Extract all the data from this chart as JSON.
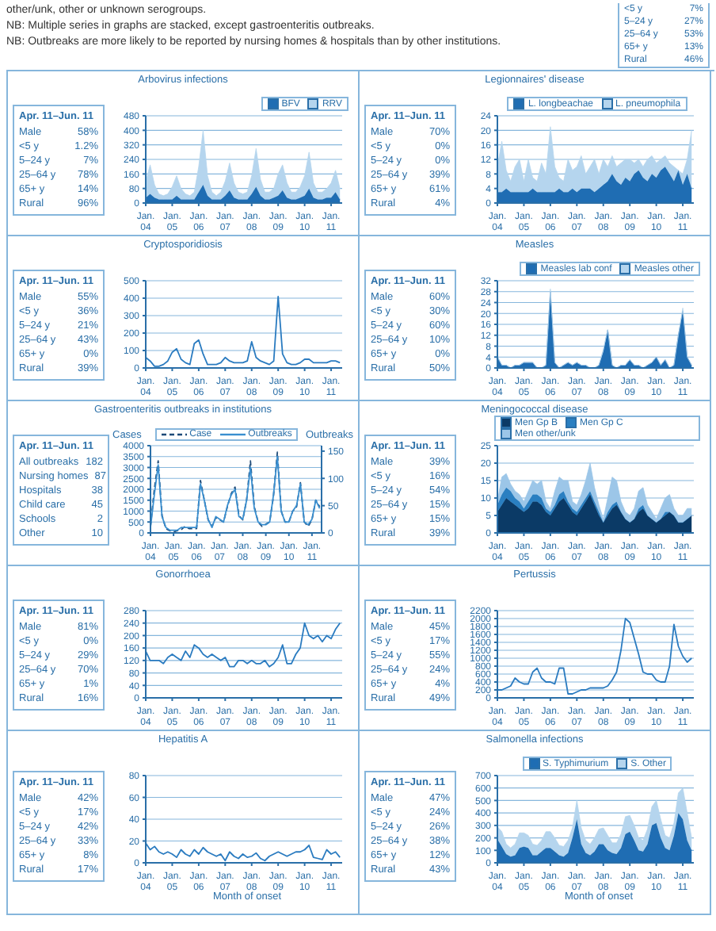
{
  "chart_data": [
    {
      "type": "other",
      "annotations": [
        "other/unk, other or unknown serogroups.",
        "NB: Multiple series in graphs are stacked, except gastroenteritis outbreaks.",
        "NB: Outbreaks are more likely to be reported by nursing homes & hospitals than by other institutions.",
        "<5 y 7%",
        "5–24 y 27%",
        "25–64 y 53%",
        "65+ y 13%",
        "Rural 46%"
      ]
    },
    {
      "type": "area",
      "title": "Arbovirus infections",
      "stacked": true,
      "legend": "top right",
      "grid": "y",
      "xlim": [
        "2004-01",
        "2011-06"
      ],
      "ylim": [
        0,
        480
      ],
      "yticks": [
        0,
        80,
        160,
        240,
        320,
        400,
        480
      ],
      "xticks": [
        {
          "value": "2004-01",
          "label": "Jan. 04"
        },
        {
          "value": "2005-01",
          "label": "Jan. 05"
        },
        {
          "value": "2006-01",
          "label": "Jan. 06"
        },
        {
          "value": "2007-01",
          "label": "Jan. 07"
        },
        {
          "value": "2008-01",
          "label": "Jan. 08"
        },
        {
          "value": "2009-01",
          "label": "Jan. 09"
        },
        {
          "value": "2010-01",
          "label": "Jan. 10"
        },
        {
          "value": "2011-01",
          "label": "Jan. 11"
        }
      ],
      "x": [
        "2004-01",
        "2004-03",
        "2004-05",
        "2004-07",
        "2004-09",
        "2004-11",
        "2005-01",
        "2005-03",
        "2005-05",
        "2005-07",
        "2005-09",
        "2005-11",
        "2006-01",
        "2006-03",
        "2006-05",
        "2006-07",
        "2006-09",
        "2006-11",
        "2007-01",
        "2007-03",
        "2007-05",
        "2007-07",
        "2007-09",
        "2007-11",
        "2008-01",
        "2008-03",
        "2008-05",
        "2008-07",
        "2008-09",
        "2008-11",
        "2009-01",
        "2009-03",
        "2009-05",
        "2009-07",
        "2009-09",
        "2009-11",
        "2010-01",
        "2010-03",
        "2010-05",
        "2010-07",
        "2010-09",
        "2010-11",
        "2011-01",
        "2011-03",
        "2011-05"
      ],
      "series": [
        {
          "name": "BFV",
          "color": "#1f6db3",
          "values": [
            30,
            50,
            30,
            20,
            20,
            20,
            20,
            40,
            20,
            20,
            20,
            20,
            60,
            100,
            40,
            20,
            20,
            20,
            40,
            70,
            30,
            20,
            20,
            20,
            50,
            90,
            40,
            20,
            20,
            30,
            40,
            70,
            30,
            20,
            20,
            30,
            40,
            80,
            30,
            20,
            20,
            30,
            30,
            60,
            20
          ]
        },
        {
          "name": "RRV",
          "color": "#b5d5ee",
          "values": [
            90,
            160,
            70,
            30,
            20,
            30,
            70,
            110,
            60,
            30,
            20,
            40,
            140,
            300,
            110,
            40,
            20,
            40,
            80,
            150,
            80,
            40,
            30,
            40,
            100,
            210,
            90,
            40,
            40,
            50,
            120,
            140,
            80,
            40,
            40,
            60,
            110,
            200,
            80,
            40,
            40,
            50,
            80,
            120,
            60
          ]
        }
      ],
      "annotations": [
        "Apr. 11–Jun. 11",
        "Male 58%",
        "<5 y 1.2%",
        "5–24 y 7%",
        "25–64 y 78%",
        "65+ y 14%",
        "Rural 96%"
      ]
    },
    {
      "type": "area",
      "title": "Legionnaires' disease",
      "stacked": true,
      "legend": "top",
      "grid": "y",
      "xlim": [
        "2004-01",
        "2011-06"
      ],
      "ylim": [
        0,
        24
      ],
      "yticks": [
        0,
        4,
        8,
        12,
        16,
        20,
        24
      ],
      "xticks": [
        {
          "value": "2004-01",
          "label": "Jan. 04"
        },
        {
          "value": "2005-01",
          "label": "Jan. 05"
        },
        {
          "value": "2006-01",
          "label": "Jan. 06"
        },
        {
          "value": "2007-01",
          "label": "Jan. 07"
        },
        {
          "value": "2008-01",
          "label": "Jan. 08"
        },
        {
          "value": "2009-01",
          "label": "Jan. 09"
        },
        {
          "value": "2010-01",
          "label": "Jan. 10"
        },
        {
          "value": "2011-01",
          "label": "Jan. 11"
        }
      ],
      "x": [
        "2004-01",
        "2004-03",
        "2004-05",
        "2004-07",
        "2004-09",
        "2004-11",
        "2005-01",
        "2005-03",
        "2005-05",
        "2005-07",
        "2005-09",
        "2005-11",
        "2006-01",
        "2006-03",
        "2006-05",
        "2006-07",
        "2006-09",
        "2006-11",
        "2007-01",
        "2007-03",
        "2007-05",
        "2007-07",
        "2007-09",
        "2007-11",
        "2008-01",
        "2008-03",
        "2008-05",
        "2008-07",
        "2008-09",
        "2008-11",
        "2009-01",
        "2009-03",
        "2009-05",
        "2009-07",
        "2009-09",
        "2009-11",
        "2010-01",
        "2010-03",
        "2010-05",
        "2010-07",
        "2010-09",
        "2010-11",
        "2011-01",
        "2011-03",
        "2011-05"
      ],
      "series": [
        {
          "name": "L. longbeachae",
          "color": "#1f6db3",
          "values": [
            3,
            3,
            4,
            3,
            3,
            3,
            3,
            3,
            4,
            3,
            3,
            3,
            3,
            3,
            4,
            3,
            3,
            4,
            3,
            4,
            4,
            4,
            3,
            4,
            5,
            6,
            8,
            6,
            5,
            7,
            6,
            8,
            9,
            7,
            6,
            8,
            7,
            9,
            10,
            8,
            6,
            9,
            5,
            8,
            4
          ]
        },
        {
          "name": "L. pneumophila",
          "color": "#b5d5ee",
          "values": [
            7,
            14,
            5,
            3,
            7,
            9,
            3,
            9,
            3,
            3,
            8,
            5,
            18,
            7,
            3,
            3,
            9,
            5,
            7,
            9,
            4,
            6,
            9,
            4,
            7,
            4,
            5,
            4,
            6,
            5,
            6,
            3,
            3,
            3,
            6,
            5,
            4,
            3,
            3,
            3,
            4,
            0,
            3,
            4,
            16
          ]
        }
      ],
      "annotations": [
        "Apr. 11–Jun. 11",
        "Male 70%",
        "<5 y 0%",
        "5–24 y 0%",
        "25–64 y 39%",
        "65+ y 61%",
        "Rural 4%"
      ]
    },
    {
      "type": "line",
      "title": "Cryptosporidiosis",
      "grid": "y",
      "xlim": [
        "2004-01",
        "2011-06"
      ],
      "ylim": [
        0,
        500
      ],
      "yticks": [
        0,
        100,
        200,
        300,
        400,
        500
      ],
      "xticks": [
        {
          "value": "2004-01",
          "label": "Jan. 04"
        },
        {
          "value": "2005-01",
          "label": "Jan. 05"
        },
        {
          "value": "2006-01",
          "label": "Jan. 06"
        },
        {
          "value": "2007-01",
          "label": "Jan. 07"
        },
        {
          "value": "2008-01",
          "label": "Jan. 08"
        },
        {
          "value": "2009-01",
          "label": "Jan. 09"
        },
        {
          "value": "2010-01",
          "label": "Jan. 10"
        },
        {
          "value": "2011-01",
          "label": "Jan. 11"
        }
      ],
      "x": [
        "2004-01",
        "2004-03",
        "2004-05",
        "2004-07",
        "2004-09",
        "2004-11",
        "2005-01",
        "2005-03",
        "2005-05",
        "2005-07",
        "2005-09",
        "2005-11",
        "2006-01",
        "2006-03",
        "2006-05",
        "2006-07",
        "2006-09",
        "2006-11",
        "2007-01",
        "2007-03",
        "2007-05",
        "2007-07",
        "2007-09",
        "2007-11",
        "2008-01",
        "2008-03",
        "2008-05",
        "2008-07",
        "2008-09",
        "2008-11",
        "2009-01",
        "2009-03",
        "2009-05",
        "2009-07",
        "2009-09",
        "2009-11",
        "2010-01",
        "2010-03",
        "2010-05",
        "2010-07",
        "2010-09",
        "2010-11",
        "2011-01",
        "2011-03",
        "2011-05"
      ],
      "series": [
        {
          "color": "#2a7bc0",
          "values": [
            60,
            40,
            10,
            10,
            20,
            40,
            90,
            110,
            50,
            30,
            20,
            140,
            160,
            80,
            20,
            20,
            20,
            30,
            60,
            40,
            30,
            30,
            30,
            40,
            150,
            60,
            40,
            30,
            20,
            40,
            410,
            80,
            30,
            20,
            20,
            30,
            50,
            50,
            30,
            30,
            30,
            30,
            40,
            40,
            30
          ]
        }
      ],
      "annotations": [
        "Apr. 11–Jun. 11",
        "Male 55%",
        "<5 y 36%",
        "5–24 y 21%",
        "25–64 y 43%",
        "65+ y 0%",
        "Rural 39%"
      ]
    },
    {
      "type": "area",
      "title": "Measles",
      "stacked": true,
      "legend": "top right",
      "grid": "y",
      "xlim": [
        "2004-01",
        "2011-06"
      ],
      "ylim": [
        0,
        32
      ],
      "yticks": [
        0,
        4,
        8,
        12,
        16,
        20,
        24,
        28,
        32
      ],
      "xticks": [
        {
          "value": "2004-01",
          "label": "Jan. 04"
        },
        {
          "value": "2005-01",
          "label": "Jan. 05"
        },
        {
          "value": "2006-01",
          "label": "Jan. 06"
        },
        {
          "value": "2007-01",
          "label": "Jan. 07"
        },
        {
          "value": "2008-01",
          "label": "Jan. 08"
        },
        {
          "value": "2009-01",
          "label": "Jan. 09"
        },
        {
          "value": "2010-01",
          "label": "Jan. 10"
        },
        {
          "value": "2011-01",
          "label": "Jan. 11"
        }
      ],
      "x": [
        "2004-01",
        "2004-03",
        "2004-05",
        "2004-07",
        "2004-09",
        "2004-11",
        "2005-01",
        "2005-03",
        "2005-05",
        "2005-07",
        "2005-09",
        "2005-11",
        "2006-01",
        "2006-03",
        "2006-05",
        "2006-07",
        "2006-09",
        "2006-11",
        "2007-01",
        "2007-03",
        "2007-05",
        "2007-07",
        "2007-09",
        "2007-11",
        "2008-01",
        "2008-03",
        "2008-05",
        "2008-07",
        "2008-09",
        "2008-11",
        "2009-01",
        "2009-03",
        "2009-05",
        "2009-07",
        "2009-09",
        "2009-11",
        "2010-01",
        "2010-03",
        "2010-05",
        "2010-07",
        "2010-09",
        "2010-11",
        "2011-01",
        "2011-03",
        "2011-05"
      ],
      "series": [
        {
          "name": "Measles lab conf",
          "color": "#1f6db3",
          "values": [
            4,
            1,
            1,
            0,
            1,
            1,
            2,
            2,
            2,
            0,
            0,
            1,
            28,
            2,
            0,
            1,
            2,
            1,
            2,
            1,
            1,
            0,
            0,
            1,
            6,
            14,
            1,
            0,
            1,
            1,
            3,
            1,
            1,
            0,
            1,
            2,
            4,
            1,
            3,
            0,
            1,
            12,
            21,
            4,
            1
          ]
        },
        {
          "name": "Measles other",
          "color": "#b5d5ee",
          "values": [
            0,
            0,
            0,
            0,
            0,
            0,
            0,
            0,
            0,
            0,
            0,
            0,
            1,
            0,
            0,
            0,
            0,
            0,
            0,
            0,
            0,
            0,
            0,
            0,
            1,
            0,
            0,
            0,
            0,
            0,
            0,
            0,
            0,
            0,
            0,
            0,
            0,
            0,
            0,
            0,
            0,
            0,
            1,
            0,
            0
          ]
        }
      ],
      "annotations": [
        "Apr. 11–Jun. 11",
        "Male 60%",
        "<5 y 30%",
        "5–24 y 60%",
        "25–64 y 10%",
        "65+ y 0%",
        "Rural 50%"
      ]
    },
    {
      "type": "line",
      "title": "Gastroenteritis outbreaks in institutions",
      "legend": "top",
      "grid": "y",
      "ylabel": "Cases",
      "y2label": "Outbreaks",
      "xlim": [
        "2004-01",
        "2011-06"
      ],
      "ylim": [
        0,
        4000
      ],
      "yticks": [
        0,
        500,
        1000,
        1500,
        2000,
        2500,
        3000,
        3500,
        4000
      ],
      "y2lim": [
        0,
        160
      ],
      "y2ticks": [
        0,
        50,
        100,
        150
      ],
      "xticks": [
        {
          "value": "2004-01",
          "label": "Jan. 04"
        },
        {
          "value": "2005-01",
          "label": "Jan. 05"
        },
        {
          "value": "2006-01",
          "label": "Jan. 06"
        },
        {
          "value": "2007-01",
          "label": "Jan. 07"
        },
        {
          "value": "2008-01",
          "label": "Jan. 08"
        },
        {
          "value": "2009-01",
          "label": "Jan. 09"
        },
        {
          "value": "2010-01",
          "label": "Jan. 10"
        },
        {
          "value": "2011-01",
          "label": "Jan. 11"
        }
      ],
      "x": [
        "2004-01",
        "2004-03",
        "2004-05",
        "2004-07",
        "2004-09",
        "2004-11",
        "2005-01",
        "2005-03",
        "2005-05",
        "2005-07",
        "2005-09",
        "2005-11",
        "2006-01",
        "2006-03",
        "2006-05",
        "2006-07",
        "2006-09",
        "2006-11",
        "2007-01",
        "2007-03",
        "2007-05",
        "2007-07",
        "2007-09",
        "2007-11",
        "2008-01",
        "2008-03",
        "2008-05",
        "2008-07",
        "2008-09",
        "2008-11",
        "2009-01",
        "2009-03",
        "2009-05",
        "2009-07",
        "2009-09",
        "2009-11",
        "2010-01",
        "2010-03",
        "2010-05",
        "2010-07",
        "2010-09",
        "2010-11",
        "2011-01",
        "2011-03",
        "2011-05"
      ],
      "series": [
        {
          "name": "Case",
          "color": "#1d4a78",
          "line_style": "dashed",
          "values": [
            300,
            2000,
            3300,
            800,
            200,
            100,
            50,
            100,
            150,
            300,
            200,
            200,
            200,
            2400,
            1500,
            600,
            300,
            700,
            600,
            500,
            1200,
            1800,
            2100,
            800,
            600,
            1500,
            3300,
            1200,
            500,
            300,
            400,
            500,
            1700,
            3700,
            1000,
            500,
            500,
            1000,
            1200,
            2300,
            500,
            300,
            600,
            1500,
            1200
          ]
        },
        {
          "name": "Outbreaks",
          "color": "#3a8fd0",
          "axis": "y2",
          "values": [
            10,
            70,
            125,
            30,
            10,
            5,
            5,
            5,
            10,
            10,
            10,
            10,
            10,
            90,
            60,
            25,
            10,
            30,
            25,
            20,
            50,
            70,
            80,
            30,
            25,
            60,
            120,
            45,
            20,
            15,
            15,
            20,
            70,
            140,
            40,
            20,
            20,
            40,
            50,
            90,
            20,
            15,
            25,
            60,
            45
          ]
        }
      ],
      "annotations": [
        "Apr. 11–Jun. 11",
        "All outbreaks 182",
        "Nursing homes 87",
        "Hospitals 38",
        "Child care 45",
        "Schools 2",
        "Other 10"
      ]
    },
    {
      "type": "area",
      "title": "Meningococcal disease",
      "stacked": true,
      "legend": "top",
      "grid": "y",
      "xlim": [
        "2004-01",
        "2011-06"
      ],
      "ylim": [
        0,
        25
      ],
      "yticks": [
        0,
        5,
        10,
        15,
        20,
        25
      ],
      "xticks": [
        {
          "value": "2004-01",
          "label": "Jan. 04"
        },
        {
          "value": "2005-01",
          "label": "Jan. 05"
        },
        {
          "value": "2006-01",
          "label": "Jan. 06"
        },
        {
          "value": "2007-01",
          "label": "Jan. 07"
        },
        {
          "value": "2008-01",
          "label": "Jan. 08"
        },
        {
          "value": "2009-01",
          "label": "Jan. 09"
        },
        {
          "value": "2010-01",
          "label": "Jan. 10"
        },
        {
          "value": "2011-01",
          "label": "Jan. 11"
        }
      ],
      "x": [
        "2004-01",
        "2004-03",
        "2004-05",
        "2004-07",
        "2004-09",
        "2004-11",
        "2005-01",
        "2005-03",
        "2005-05",
        "2005-07",
        "2005-09",
        "2005-11",
        "2006-01",
        "2006-03",
        "2006-05",
        "2006-07",
        "2006-09",
        "2006-11",
        "2007-01",
        "2007-03",
        "2007-05",
        "2007-07",
        "2007-09",
        "2007-11",
        "2008-01",
        "2008-03",
        "2008-05",
        "2008-07",
        "2008-09",
        "2008-11",
        "2009-01",
        "2009-03",
        "2009-05",
        "2009-07",
        "2009-09",
        "2009-11",
        "2010-01",
        "2010-03",
        "2010-05",
        "2010-07",
        "2010-09",
        "2010-11",
        "2011-01",
        "2011-03",
        "2011-05"
      ],
      "series": [
        {
          "name": "Men Gp B",
          "color": "#0b3a66",
          "values": [
            6,
            8,
            10,
            9,
            8,
            7,
            6,
            7,
            9,
            9,
            8,
            6,
            5,
            7,
            9,
            10,
            8,
            6,
            5,
            7,
            9,
            11,
            8,
            5,
            3,
            5,
            7,
            8,
            6,
            4,
            3,
            4,
            6,
            7,
            5,
            4,
            3,
            4,
            5,
            6,
            5,
            3,
            3,
            4,
            5
          ]
        },
        {
          "name": "Men Gp C",
          "color": "#2a7fc1",
          "values": [
            2,
            3,
            3,
            3,
            2,
            2,
            1,
            2,
            2,
            2,
            2,
            1,
            1,
            1,
            2,
            2,
            1,
            1,
            1,
            1,
            1,
            1,
            1,
            1,
            0,
            1,
            1,
            1,
            0,
            0,
            0,
            0,
            1,
            1,
            0,
            0,
            0,
            0,
            1,
            0,
            0,
            0,
            0,
            0,
            0
          ]
        },
        {
          "name": "Men other/unk",
          "color": "#9cc6e8",
          "values": [
            1,
            5,
            4,
            2,
            2,
            2,
            2,
            3,
            4,
            3,
            5,
            2,
            1,
            4,
            5,
            3,
            6,
            2,
            2,
            3,
            5,
            8,
            4,
            2,
            1,
            4,
            8,
            6,
            3,
            2,
            2,
            3,
            5,
            5,
            3,
            2,
            1,
            3,
            4,
            5,
            2,
            2,
            2,
            3,
            2
          ]
        }
      ],
      "annotations": [
        "Apr. 11–Jun. 11",
        "Male 39%",
        "<5 y 16%",
        "5–24 y 54%",
        "25–64 y 15%",
        "65+ y 15%",
        "Rural 39%"
      ]
    },
    {
      "type": "line",
      "title": "Gonorrhoea",
      "grid": "y",
      "xlim": [
        "2004-01",
        "2011-06"
      ],
      "ylim": [
        0,
        280
      ],
      "yticks": [
        0,
        40,
        80,
        120,
        160,
        200,
        240,
        280
      ],
      "xticks": [
        {
          "value": "2004-01",
          "label": "Jan. 04"
        },
        {
          "value": "2005-01",
          "label": "Jan. 05"
        },
        {
          "value": "2006-01",
          "label": "Jan. 06"
        },
        {
          "value": "2007-01",
          "label": "Jan. 07"
        },
        {
          "value": "2008-01",
          "label": "Jan. 08"
        },
        {
          "value": "2009-01",
          "label": "Jan. 09"
        },
        {
          "value": "2010-01",
          "label": "Jan. 10"
        },
        {
          "value": "2011-01",
          "label": "Jan. 11"
        }
      ],
      "x": [
        "2004-01",
        "2004-03",
        "2004-05",
        "2004-07",
        "2004-09",
        "2004-11",
        "2005-01",
        "2005-03",
        "2005-05",
        "2005-07",
        "2005-09",
        "2005-11",
        "2006-01",
        "2006-03",
        "2006-05",
        "2006-07",
        "2006-09",
        "2006-11",
        "2007-01",
        "2007-03",
        "2007-05",
        "2007-07",
        "2007-09",
        "2007-11",
        "2008-01",
        "2008-03",
        "2008-05",
        "2008-07",
        "2008-09",
        "2008-11",
        "2009-01",
        "2009-03",
        "2009-05",
        "2009-07",
        "2009-09",
        "2009-11",
        "2010-01",
        "2010-03",
        "2010-05",
        "2010-07",
        "2010-09",
        "2010-11",
        "2011-01",
        "2011-03",
        "2011-05"
      ],
      "series": [
        {
          "color": "#2a7bc0",
          "values": [
            150,
            120,
            120,
            120,
            110,
            130,
            140,
            130,
            120,
            150,
            130,
            170,
            160,
            140,
            130,
            140,
            130,
            120,
            130,
            100,
            100,
            120,
            120,
            110,
            120,
            110,
            110,
            120,
            100,
            110,
            130,
            170,
            110,
            110,
            140,
            160,
            240,
            200,
            190,
            200,
            180,
            200,
            190,
            220,
            240
          ]
        }
      ],
      "annotations": [
        "Apr. 11–Jun. 11",
        "Male 81%",
        "<5 y 0%",
        "5–24 y 29%",
        "25–64 y 70%",
        "65+ y 1%",
        "Rural 16%"
      ]
    },
    {
      "type": "line",
      "title": "Pertussis",
      "grid": "y",
      "xlim": [
        "2004-01",
        "2011-06"
      ],
      "ylim": [
        0,
        2200
      ],
      "yticks": [
        0,
        200,
        400,
        600,
        800,
        1000,
        1200,
        1400,
        1600,
        1800,
        2000,
        2200
      ],
      "xticks": [
        {
          "value": "2004-01",
          "label": "Jan. 04"
        },
        {
          "value": "2005-01",
          "label": "Jan. 05"
        },
        {
          "value": "2006-01",
          "label": "Jan. 06"
        },
        {
          "value": "2007-01",
          "label": "Jan. 07"
        },
        {
          "value": "2008-01",
          "label": "Jan. 08"
        },
        {
          "value": "2009-01",
          "label": "Jan. 09"
        },
        {
          "value": "2010-01",
          "label": "Jan. 10"
        },
        {
          "value": "2011-01",
          "label": "Jan. 11"
        }
      ],
      "x": [
        "2004-01",
        "2004-03",
        "2004-05",
        "2004-07",
        "2004-09",
        "2004-11",
        "2005-01",
        "2005-03",
        "2005-05",
        "2005-07",
        "2005-09",
        "2005-11",
        "2006-01",
        "2006-03",
        "2006-05",
        "2006-07",
        "2006-09",
        "2006-11",
        "2007-01",
        "2007-03",
        "2007-05",
        "2007-07",
        "2007-09",
        "2007-11",
        "2008-01",
        "2008-03",
        "2008-05",
        "2008-07",
        "2008-09",
        "2008-11",
        "2009-01",
        "2009-03",
        "2009-05",
        "2009-07",
        "2009-09",
        "2009-11",
        "2010-01",
        "2010-03",
        "2010-05",
        "2010-07",
        "2010-09",
        "2010-11",
        "2011-01",
        "2011-03",
        "2011-05"
      ],
      "series": [
        {
          "color": "#2a7bc0",
          "values": [
            200,
            200,
            250,
            300,
            500,
            400,
            350,
            350,
            650,
            750,
            500,
            400,
            400,
            350,
            750,
            750,
            100,
            100,
            150,
            200,
            200,
            250,
            250,
            250,
            250,
            300,
            450,
            650,
            1200,
            2000,
            1900,
            1500,
            1100,
            650,
            600,
            600,
            450,
            400,
            400,
            800,
            1850,
            1300,
            1050,
            900,
            1000
          ]
        }
      ],
      "annotations": [
        "Apr. 11–Jun. 11",
        "Male 45%",
        "<5 y 17%",
        "5–24 y 55%",
        "25–64 y 24%",
        "65+ y 4%",
        "Rural 49%"
      ]
    },
    {
      "type": "line",
      "title": "Hepatitis A",
      "grid": "y",
      "xlabel": "Month of onset",
      "xlim": [
        "2004-01",
        "2011-06"
      ],
      "ylim": [
        0,
        80
      ],
      "yticks": [
        0,
        20,
        40,
        60,
        80
      ],
      "xticks": [
        {
          "value": "2004-01",
          "label": "Jan. 04"
        },
        {
          "value": "2005-01",
          "label": "Jan. 05"
        },
        {
          "value": "2006-01",
          "label": "Jan. 06"
        },
        {
          "value": "2007-01",
          "label": "Jan. 07"
        },
        {
          "value": "2008-01",
          "label": "Jan. 08"
        },
        {
          "value": "2009-01",
          "label": "Jan. 09"
        },
        {
          "value": "2010-01",
          "label": "Jan. 10"
        },
        {
          "value": "2011-01",
          "label": "Jan. 11"
        }
      ],
      "x": [
        "2004-01",
        "2004-03",
        "2004-05",
        "2004-07",
        "2004-09",
        "2004-11",
        "2005-01",
        "2005-03",
        "2005-05",
        "2005-07",
        "2005-09",
        "2005-11",
        "2006-01",
        "2006-03",
        "2006-05",
        "2006-07",
        "2006-09",
        "2006-11",
        "2007-01",
        "2007-03",
        "2007-05",
        "2007-07",
        "2007-09",
        "2007-11",
        "2008-01",
        "2008-03",
        "2008-05",
        "2008-07",
        "2008-09",
        "2008-11",
        "2009-01",
        "2009-03",
        "2009-05",
        "2009-07",
        "2009-09",
        "2009-11",
        "2010-01",
        "2010-03",
        "2010-05",
        "2010-07",
        "2010-09",
        "2010-11",
        "2011-01",
        "2011-03",
        "2011-05"
      ],
      "series": [
        {
          "color": "#2a7bc0",
          "values": [
            18,
            12,
            15,
            10,
            8,
            10,
            8,
            5,
            12,
            8,
            6,
            12,
            8,
            14,
            10,
            8,
            6,
            8,
            2,
            10,
            6,
            4,
            8,
            5,
            6,
            9,
            4,
            2,
            6,
            8,
            10,
            8,
            6,
            8,
            10,
            10,
            12,
            16,
            5,
            4,
            3,
            12,
            8,
            10,
            5
          ]
        }
      ],
      "annotations": [
        "Apr. 11–Jun. 11",
        "Male 42%",
        "<5 y 17%",
        "5–24 y 42%",
        "25–64 y 33%",
        "65+ y 8%",
        "Rural 17%"
      ]
    },
    {
      "type": "area",
      "title": "Salmonella infections",
      "stacked": true,
      "legend": "top",
      "grid": "y",
      "xlabel": "Month of onset",
      "xlim": [
        "2004-01",
        "2011-06"
      ],
      "ylim": [
        0,
        700
      ],
      "yticks": [
        0,
        100,
        200,
        300,
        400,
        500,
        600,
        700
      ],
      "xticks": [
        {
          "value": "2004-01",
          "label": "Jan. 04"
        },
        {
          "value": "2005-01",
          "label": "Jan. 05"
        },
        {
          "value": "2006-01",
          "label": "Jan. 06"
        },
        {
          "value": "2007-01",
          "label": "Jan. 07"
        },
        {
          "value": "2008-01",
          "label": "Jan. 08"
        },
        {
          "value": "2009-01",
          "label": "Jan. 09"
        },
        {
          "value": "2010-01",
          "label": "Jan. 10"
        },
        {
          "value": "2011-01",
          "label": "Jan. 11"
        }
      ],
      "x": [
        "2004-01",
        "2004-03",
        "2004-05",
        "2004-07",
        "2004-09",
        "2004-11",
        "2005-01",
        "2005-03",
        "2005-05",
        "2005-07",
        "2005-09",
        "2005-11",
        "2006-01",
        "2006-03",
        "2006-05",
        "2006-07",
        "2006-09",
        "2006-11",
        "2007-01",
        "2007-03",
        "2007-05",
        "2007-07",
        "2007-09",
        "2007-11",
        "2008-01",
        "2008-03",
        "2008-05",
        "2008-07",
        "2008-09",
        "2008-11",
        "2009-01",
        "2009-03",
        "2009-05",
        "2009-07",
        "2009-09",
        "2009-11",
        "2010-01",
        "2010-03",
        "2010-05",
        "2010-07",
        "2010-09",
        "2010-11",
        "2011-01",
        "2011-03",
        "2011-05"
      ],
      "series": [
        {
          "name": "S. Typhimurium",
          "color": "#1f6db3",
          "values": [
            190,
            130,
            70,
            50,
            60,
            120,
            130,
            120,
            60,
            60,
            90,
            120,
            120,
            90,
            60,
            50,
            80,
            200,
            350,
            150,
            80,
            60,
            90,
            150,
            150,
            100,
            80,
            70,
            120,
            230,
            250,
            180,
            100,
            90,
            150,
            300,
            320,
            200,
            120,
            100,
            220,
            400,
            350,
            180,
            100
          ]
        },
        {
          "name": "S. Other",
          "color": "#b5d5ee",
          "values": [
            100,
            120,
            80,
            70,
            90,
            120,
            110,
            100,
            90,
            80,
            90,
            130,
            130,
            110,
            80,
            80,
            100,
            80,
            150,
            130,
            100,
            90,
            110,
            120,
            130,
            120,
            80,
            90,
            110,
            140,
            130,
            120,
            100,
            90,
            120,
            150,
            180,
            150,
            100,
            100,
            100,
            160,
            250,
            220,
            100
          ]
        }
      ],
      "annotations": [
        "Apr. 11–Jun. 11",
        "Male 47%",
        "<5 y 24%",
        "5–24 y 26%",
        "25–64 y 38%",
        "65+ y 12%",
        "Rural 43%"
      ]
    }
  ]
}
